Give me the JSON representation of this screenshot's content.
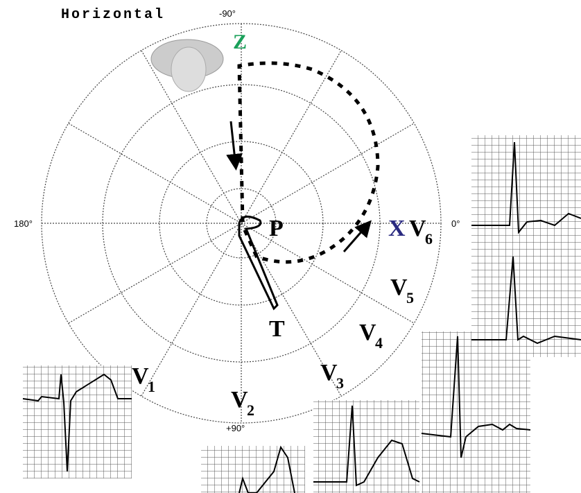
{
  "title": "Horizontal",
  "angles": {
    "top": "-90°",
    "left": "180°",
    "right": "0°",
    "bottom": "+90°"
  },
  "axes": {
    "z": "Z",
    "x": "X"
  },
  "waves": {
    "p": "P",
    "t": "T"
  },
  "leads": [
    {
      "letter": "V",
      "sub": "1"
    },
    {
      "letter": "V",
      "sub": "2"
    },
    {
      "letter": "V",
      "sub": "3"
    },
    {
      "letter": "V",
      "sub": "4"
    },
    {
      "letter": "V",
      "sub": "5"
    },
    {
      "letter": "V",
      "sub": "6"
    }
  ]
}
